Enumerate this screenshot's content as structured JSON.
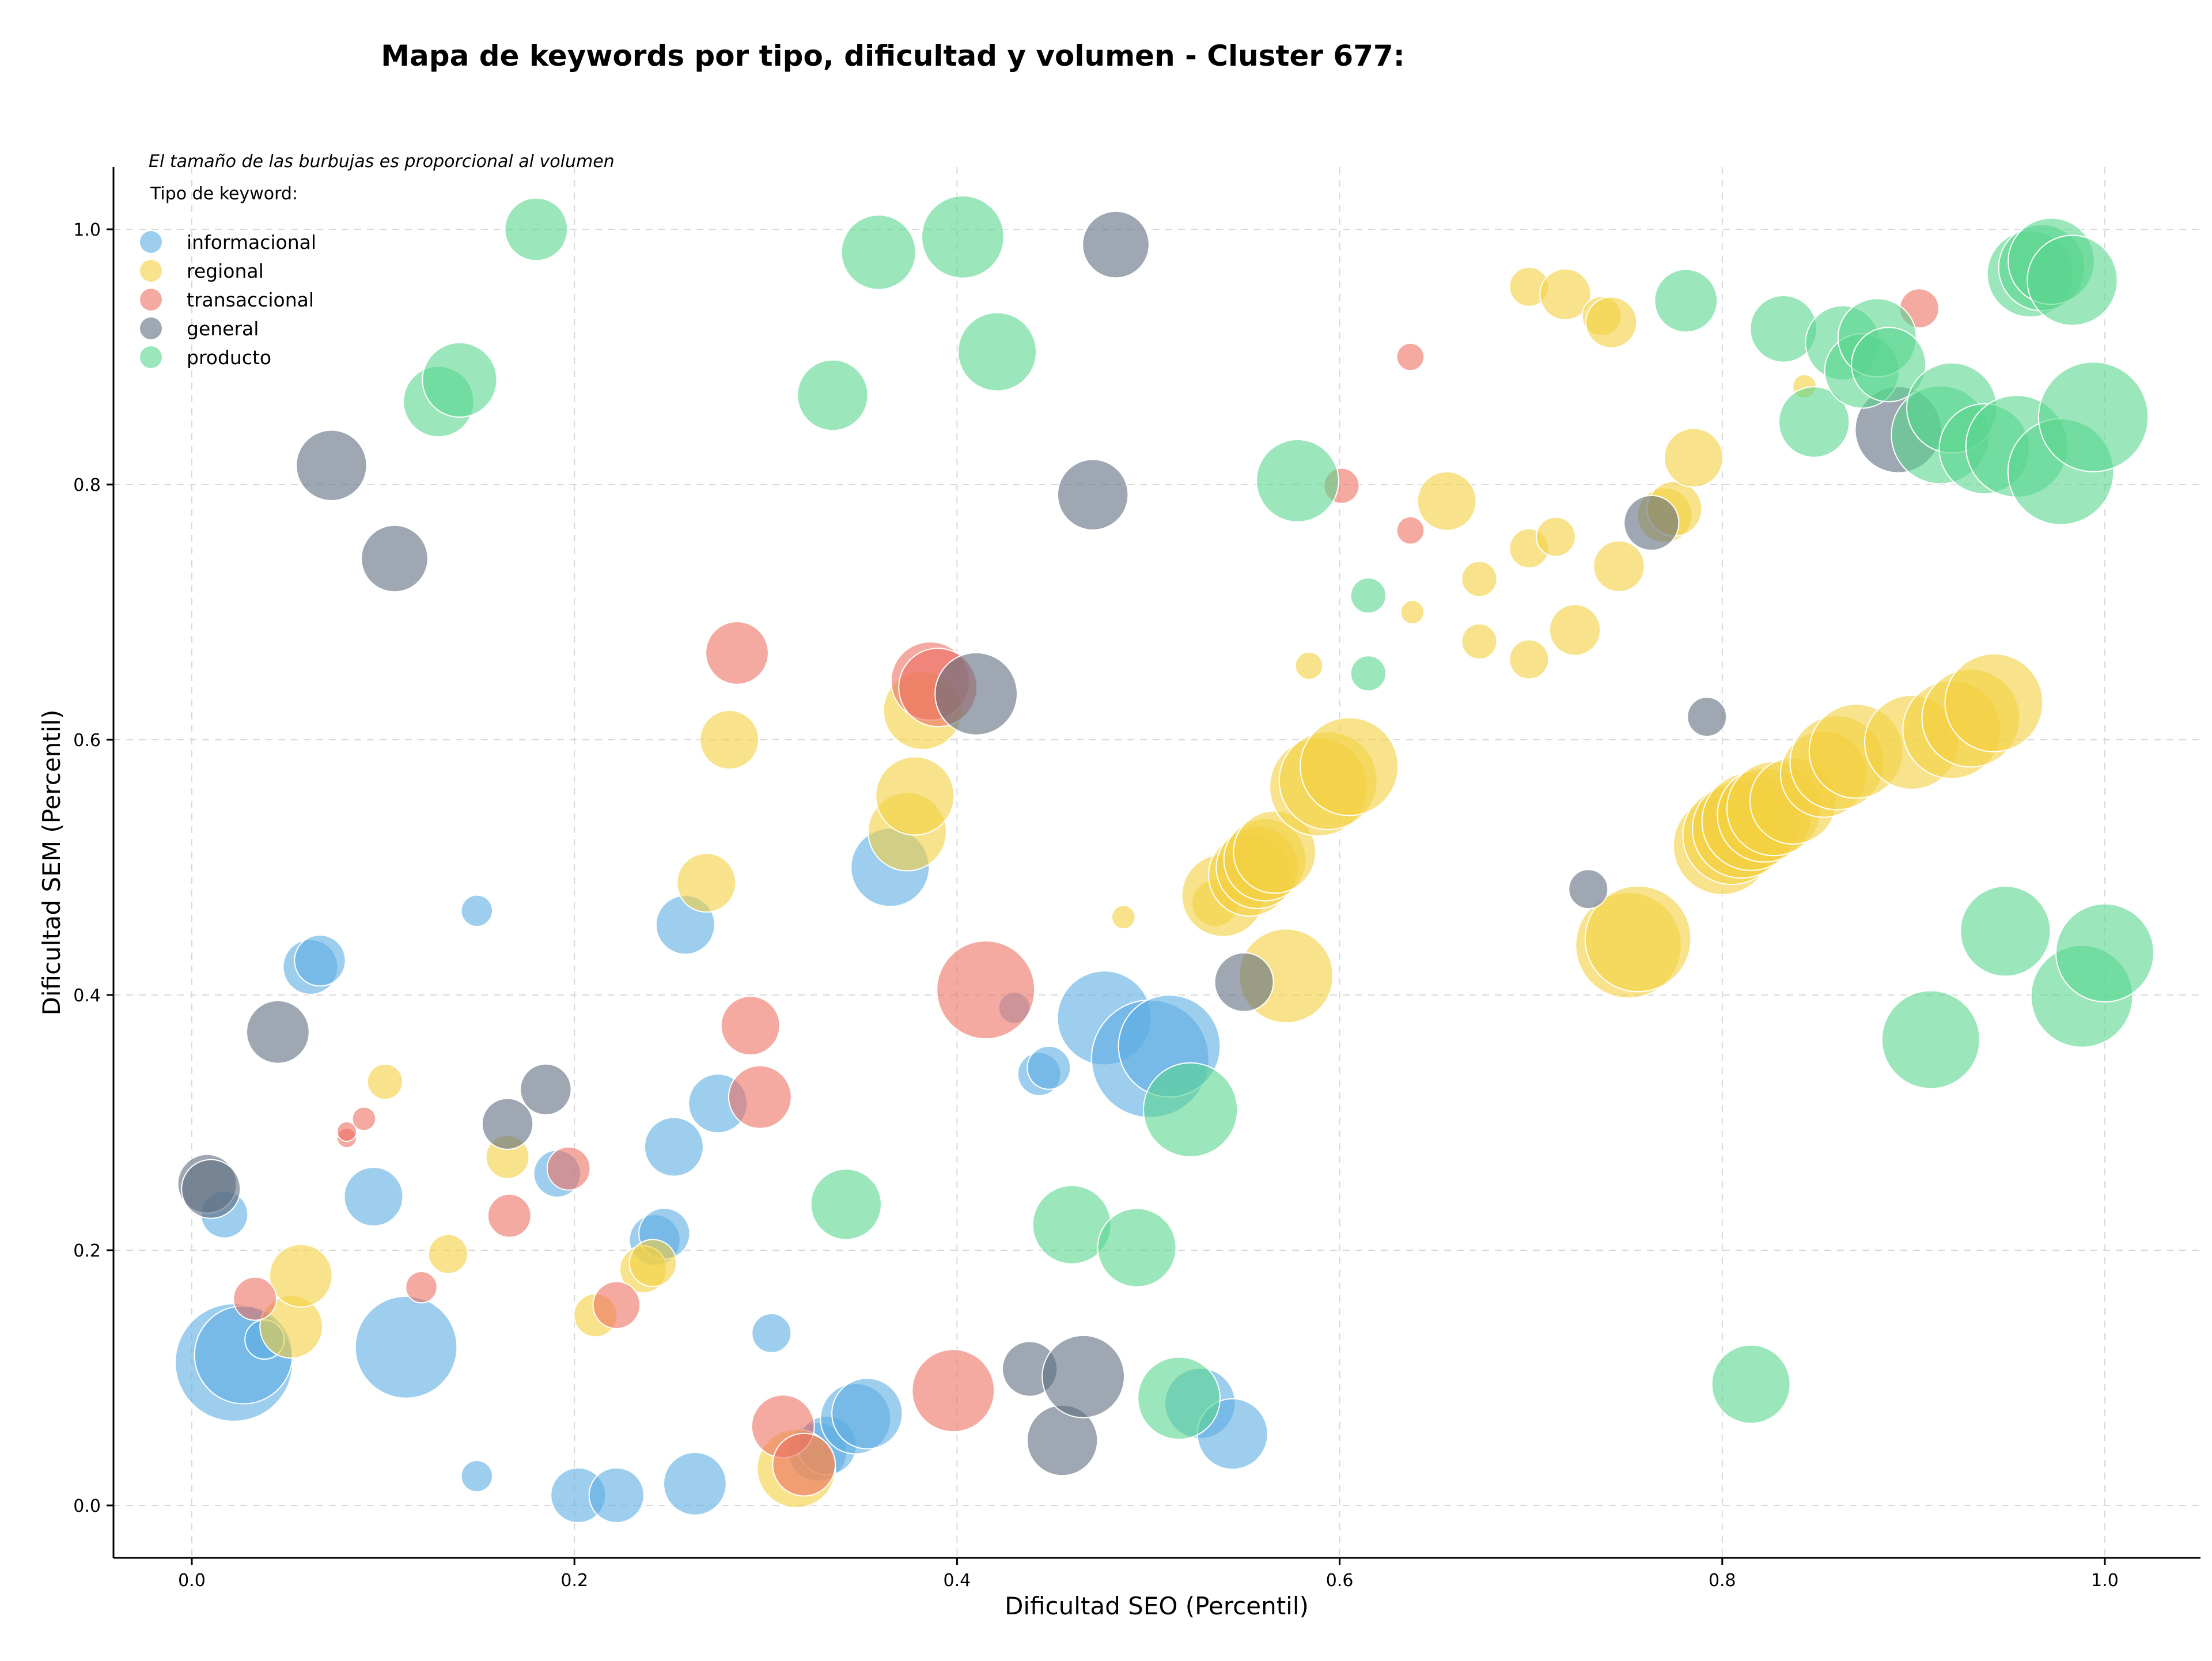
{
  "chart_data": {
    "type": "scatter",
    "title": "Mapa de keywords por tipo, dificultad y volumen - Cluster 677:",
    "subtitle_note": "El tamaño de las burbujas es proporcional al volumen",
    "xlabel": "Dificultad SEO (Percentil)",
    "ylabel": "Dificultad SEM (Percentil)",
    "xlim": [
      -0.04,
      1.05
    ],
    "ylim": [
      -0.04,
      1.05
    ],
    "xticks": [
      "0.0",
      "0.2",
      "0.4",
      "0.6",
      "0.8",
      "1.0"
    ],
    "yticks": [
      "0.0",
      "0.2",
      "0.4",
      "0.6",
      "0.8",
      "1.0"
    ],
    "grid": true,
    "legend_title": "Tipo de keyword:",
    "legend_position": "top-left",
    "size_legend_note": "proportional to volume",
    "series": [
      {
        "name": "informacional",
        "color": "#5dade2",
        "points": [
          [
            0.022,
            0.112,
            3
          ],
          [
            0.027,
            0.118,
            2.5
          ],
          [
            0.017,
            0.228,
            1.2
          ],
          [
            0.038,
            0.13,
            1
          ],
          [
            0.062,
            0.422,
            1.4
          ],
          [
            0.067,
            0.427,
            1.3
          ],
          [
            0.095,
            0.242,
            1.5
          ],
          [
            0.112,
            0.124,
            2.6
          ],
          [
            0.149,
            0.466,
            0.8
          ],
          [
            0.149,
            0.023,
            0.8
          ],
          [
            0.191,
            0.26,
            1.2
          ],
          [
            0.202,
            0.008,
            1.4
          ],
          [
            0.222,
            0.008,
            1.4
          ],
          [
            0.242,
            0.208,
            1.3
          ],
          [
            0.247,
            0.213,
            1.3
          ],
          [
            0.252,
            0.281,
            1.5
          ],
          [
            0.258,
            0.455,
            1.5
          ],
          [
            0.263,
            0.017,
            1.6
          ],
          [
            0.275,
            0.315,
            1.5
          ],
          [
            0.303,
            0.135,
            1
          ],
          [
            0.327,
            0.042,
            1.5
          ],
          [
            0.332,
            0.047,
            1.5
          ],
          [
            0.347,
            0.068,
            1.8
          ],
          [
            0.353,
            0.072,
            1.8
          ],
          [
            0.365,
            0.5,
            2
          ],
          [
            0.43,
            0.39,
            0.8
          ],
          [
            0.443,
            0.338,
            1.1
          ],
          [
            0.448,
            0.343,
            1.1
          ],
          [
            0.477,
            0.382,
            2.4
          ],
          [
            0.501,
            0.35,
            3
          ],
          [
            0.511,
            0.36,
            2.6
          ],
          [
            0.527,
            0.08,
            1.8
          ],
          [
            0.544,
            0.056,
            1.8
          ]
        ]
      },
      {
        "name": "regional",
        "color": "#f4d03f",
        "points": [
          [
            0.052,
            0.14,
            1.6
          ],
          [
            0.057,
            0.18,
            1.6
          ],
          [
            0.101,
            0.332,
            0.9
          ],
          [
            0.134,
            0.197,
            1
          ],
          [
            0.165,
            0.273,
            1.1
          ],
          [
            0.211,
            0.149,
            1.1
          ],
          [
            0.236,
            0.185,
            1.2
          ],
          [
            0.241,
            0.19,
            1.2
          ],
          [
            0.269,
            0.488,
            1.5
          ],
          [
            0.281,
            0.6,
            1.5
          ],
          [
            0.316,
            0.029,
            2
          ],
          [
            0.374,
            0.528,
            2
          ],
          [
            0.378,
            0.556,
            2
          ],
          [
            0.382,
            0.623,
            2
          ],
          [
            0.487,
            0.461,
            0.6
          ],
          [
            0.535,
            0.472,
            1.2
          ],
          [
            0.539,
            0.478,
            2.1
          ],
          [
            0.553,
            0.494,
            2.1
          ],
          [
            0.557,
            0.5,
            2.1
          ],
          [
            0.561,
            0.506,
            2.1
          ],
          [
            0.566,
            0.512,
            2.1
          ],
          [
            0.572,
            0.415,
            2.4
          ],
          [
            0.584,
            0.658,
            0.7
          ],
          [
            0.589,
            0.563,
            2.5
          ],
          [
            0.594,
            0.568,
            2.5
          ],
          [
            0.605,
            0.579,
            2.5
          ],
          [
            0.638,
            0.7,
            0.6
          ],
          [
            0.656,
            0.787,
            1.5
          ],
          [
            0.673,
            0.677,
            0.9
          ],
          [
            0.673,
            0.726,
            0.9
          ],
          [
            0.699,
            0.663,
            1
          ],
          [
            0.699,
            0.75,
            1
          ],
          [
            0.699,
            0.955,
            1
          ],
          [
            0.713,
            0.759,
            1
          ],
          [
            0.718,
            0.949,
            1.3
          ],
          [
            0.723,
            0.686,
            1.3
          ],
          [
            0.737,
            0.932,
            1
          ],
          [
            0.742,
            0.927,
            1.3
          ],
          [
            0.746,
            0.736,
            1.3
          ],
          [
            0.751,
            0.439,
            2.7
          ],
          [
            0.756,
            0.444,
            2.7
          ],
          [
            0.77,
            0.776,
            1.4
          ],
          [
            0.775,
            0.781,
            1.4
          ],
          [
            0.785,
            0.821,
            1.5
          ],
          [
            0.8,
            0.517,
            2.5
          ],
          [
            0.805,
            0.525,
            2.5
          ],
          [
            0.81,
            0.53,
            2.5
          ],
          [
            0.815,
            0.536,
            2.5
          ],
          [
            0.822,
            0.541,
            2.4
          ],
          [
            0.827,
            0.546,
            2.4
          ],
          [
            0.837,
            0.552,
            2.2
          ],
          [
            0.843,
            0.877,
            0.6
          ],
          [
            0.853,
            0.573,
            2.2
          ],
          [
            0.86,
            0.582,
            2.4
          ],
          [
            0.87,
            0.591,
            2.4
          ],
          [
            0.899,
            0.598,
            2.4
          ],
          [
            0.92,
            0.608,
            2.5
          ],
          [
            0.93,
            0.617,
            2.5
          ],
          [
            0.942,
            0.629,
            2.5
          ]
        ]
      },
      {
        "name": "transaccional",
        "color": "#ec7063",
        "points": [
          [
            0.033,
            0.162,
            1.1
          ],
          [
            0.081,
            0.288,
            0.5
          ],
          [
            0.081,
            0.293,
            0.5
          ],
          [
            0.09,
            0.303,
            0.6
          ],
          [
            0.12,
            0.171,
            0.8
          ],
          [
            0.166,
            0.227,
            1.1
          ],
          [
            0.197,
            0.264,
            1.1
          ],
          [
            0.222,
            0.157,
            1.2
          ],
          [
            0.285,
            0.668,
            1.6
          ],
          [
            0.292,
            0.376,
            1.5
          ],
          [
            0.297,
            0.32,
            1.6
          ],
          [
            0.309,
            0.062,
            1.6
          ],
          [
            0.32,
            0.032,
            1.6
          ],
          [
            0.386,
            0.646,
            2
          ],
          [
            0.39,
            0.641,
            2
          ],
          [
            0.398,
            0.09,
            2.1
          ],
          [
            0.415,
            0.404,
            2.5
          ],
          [
            0.601,
            0.799,
            0.9
          ],
          [
            0.637,
            0.764,
            0.7
          ],
          [
            0.637,
            0.9,
            0.7
          ],
          [
            0.903,
            0.938,
            1
          ]
        ]
      },
      {
        "name": "general",
        "color": "#5d6d7e",
        "points": [
          [
            0.008,
            0.252,
            1.5
          ],
          [
            0.01,
            0.248,
            1.5
          ],
          [
            0.045,
            0.371,
            1.6
          ],
          [
            0.073,
            0.815,
            1.8
          ],
          [
            0.106,
            0.742,
            1.7
          ],
          [
            0.165,
            0.299,
            1.3
          ],
          [
            0.185,
            0.326,
            1.3
          ],
          [
            0.41,
            0.636,
            2.1
          ],
          [
            0.438,
            0.107,
            1.4
          ],
          [
            0.455,
            0.051,
            1.8
          ],
          [
            0.466,
            0.101,
            2.1
          ],
          [
            0.471,
            0.792,
            1.8
          ],
          [
            0.483,
            0.988,
            1.7
          ],
          [
            0.55,
            0.41,
            1.5
          ],
          [
            0.73,
            0.483,
            1
          ],
          [
            0.763,
            0.77,
            1.4
          ],
          [
            0.792,
            0.618,
            1
          ],
          [
            0.892,
            0.843,
            2.2
          ]
        ]
      },
      {
        "name": "producto",
        "color": "#58d68d",
        "points": [
          [
            0.129,
            0.865,
            1.8
          ],
          [
            0.14,
            0.882,
            1.9
          ],
          [
            0.18,
            1.0,
            1.6
          ],
          [
            0.335,
            0.87,
            1.8
          ],
          [
            0.342,
            0.236,
            1.8
          ],
          [
            0.359,
            0.982,
            1.9
          ],
          [
            0.403,
            0.994,
            2.1
          ],
          [
            0.421,
            0.904,
            2
          ],
          [
            0.46,
            0.22,
            2
          ],
          [
            0.494,
            0.202,
            2
          ],
          [
            0.516,
            0.084,
            2.1
          ],
          [
            0.522,
            0.31,
            2.4
          ],
          [
            0.578,
            0.803,
            2.1
          ],
          [
            0.615,
            0.713,
            0.9
          ],
          [
            0.615,
            0.652,
            0.9
          ],
          [
            0.781,
            0.944,
            1.6
          ],
          [
            0.815,
            0.095,
            2
          ],
          [
            0.832,
            0.922,
            1.7
          ],
          [
            0.848,
            0.849,
            1.8
          ],
          [
            0.863,
            0.911,
            1.9
          ],
          [
            0.873,
            0.889,
            1.9
          ],
          [
            0.881,
            0.915,
            2
          ],
          [
            0.887,
            0.894,
            1.9
          ],
          [
            0.909,
            0.365,
            2.5
          ],
          [
            0.914,
            0.839,
            2.5
          ],
          [
            0.92,
            0.86,
            2.3
          ],
          [
            0.937,
            0.828,
            2.3
          ],
          [
            0.948,
            0.45,
            2.3
          ],
          [
            0.954,
            0.83,
            2.6
          ],
          [
            0.961,
            0.965,
            2.2
          ],
          [
            0.967,
            0.97,
            2.2
          ],
          [
            0.972,
            0.975,
            2.2
          ],
          [
            0.977,
            0.81,
            2.7
          ],
          [
            0.983,
            0.96,
            2.3
          ],
          [
            0.988,
            0.399,
            2.6
          ],
          [
            0.994,
            0.853,
            2.8
          ],
          [
            1.0,
            0.433,
            2.5
          ]
        ]
      }
    ]
  }
}
